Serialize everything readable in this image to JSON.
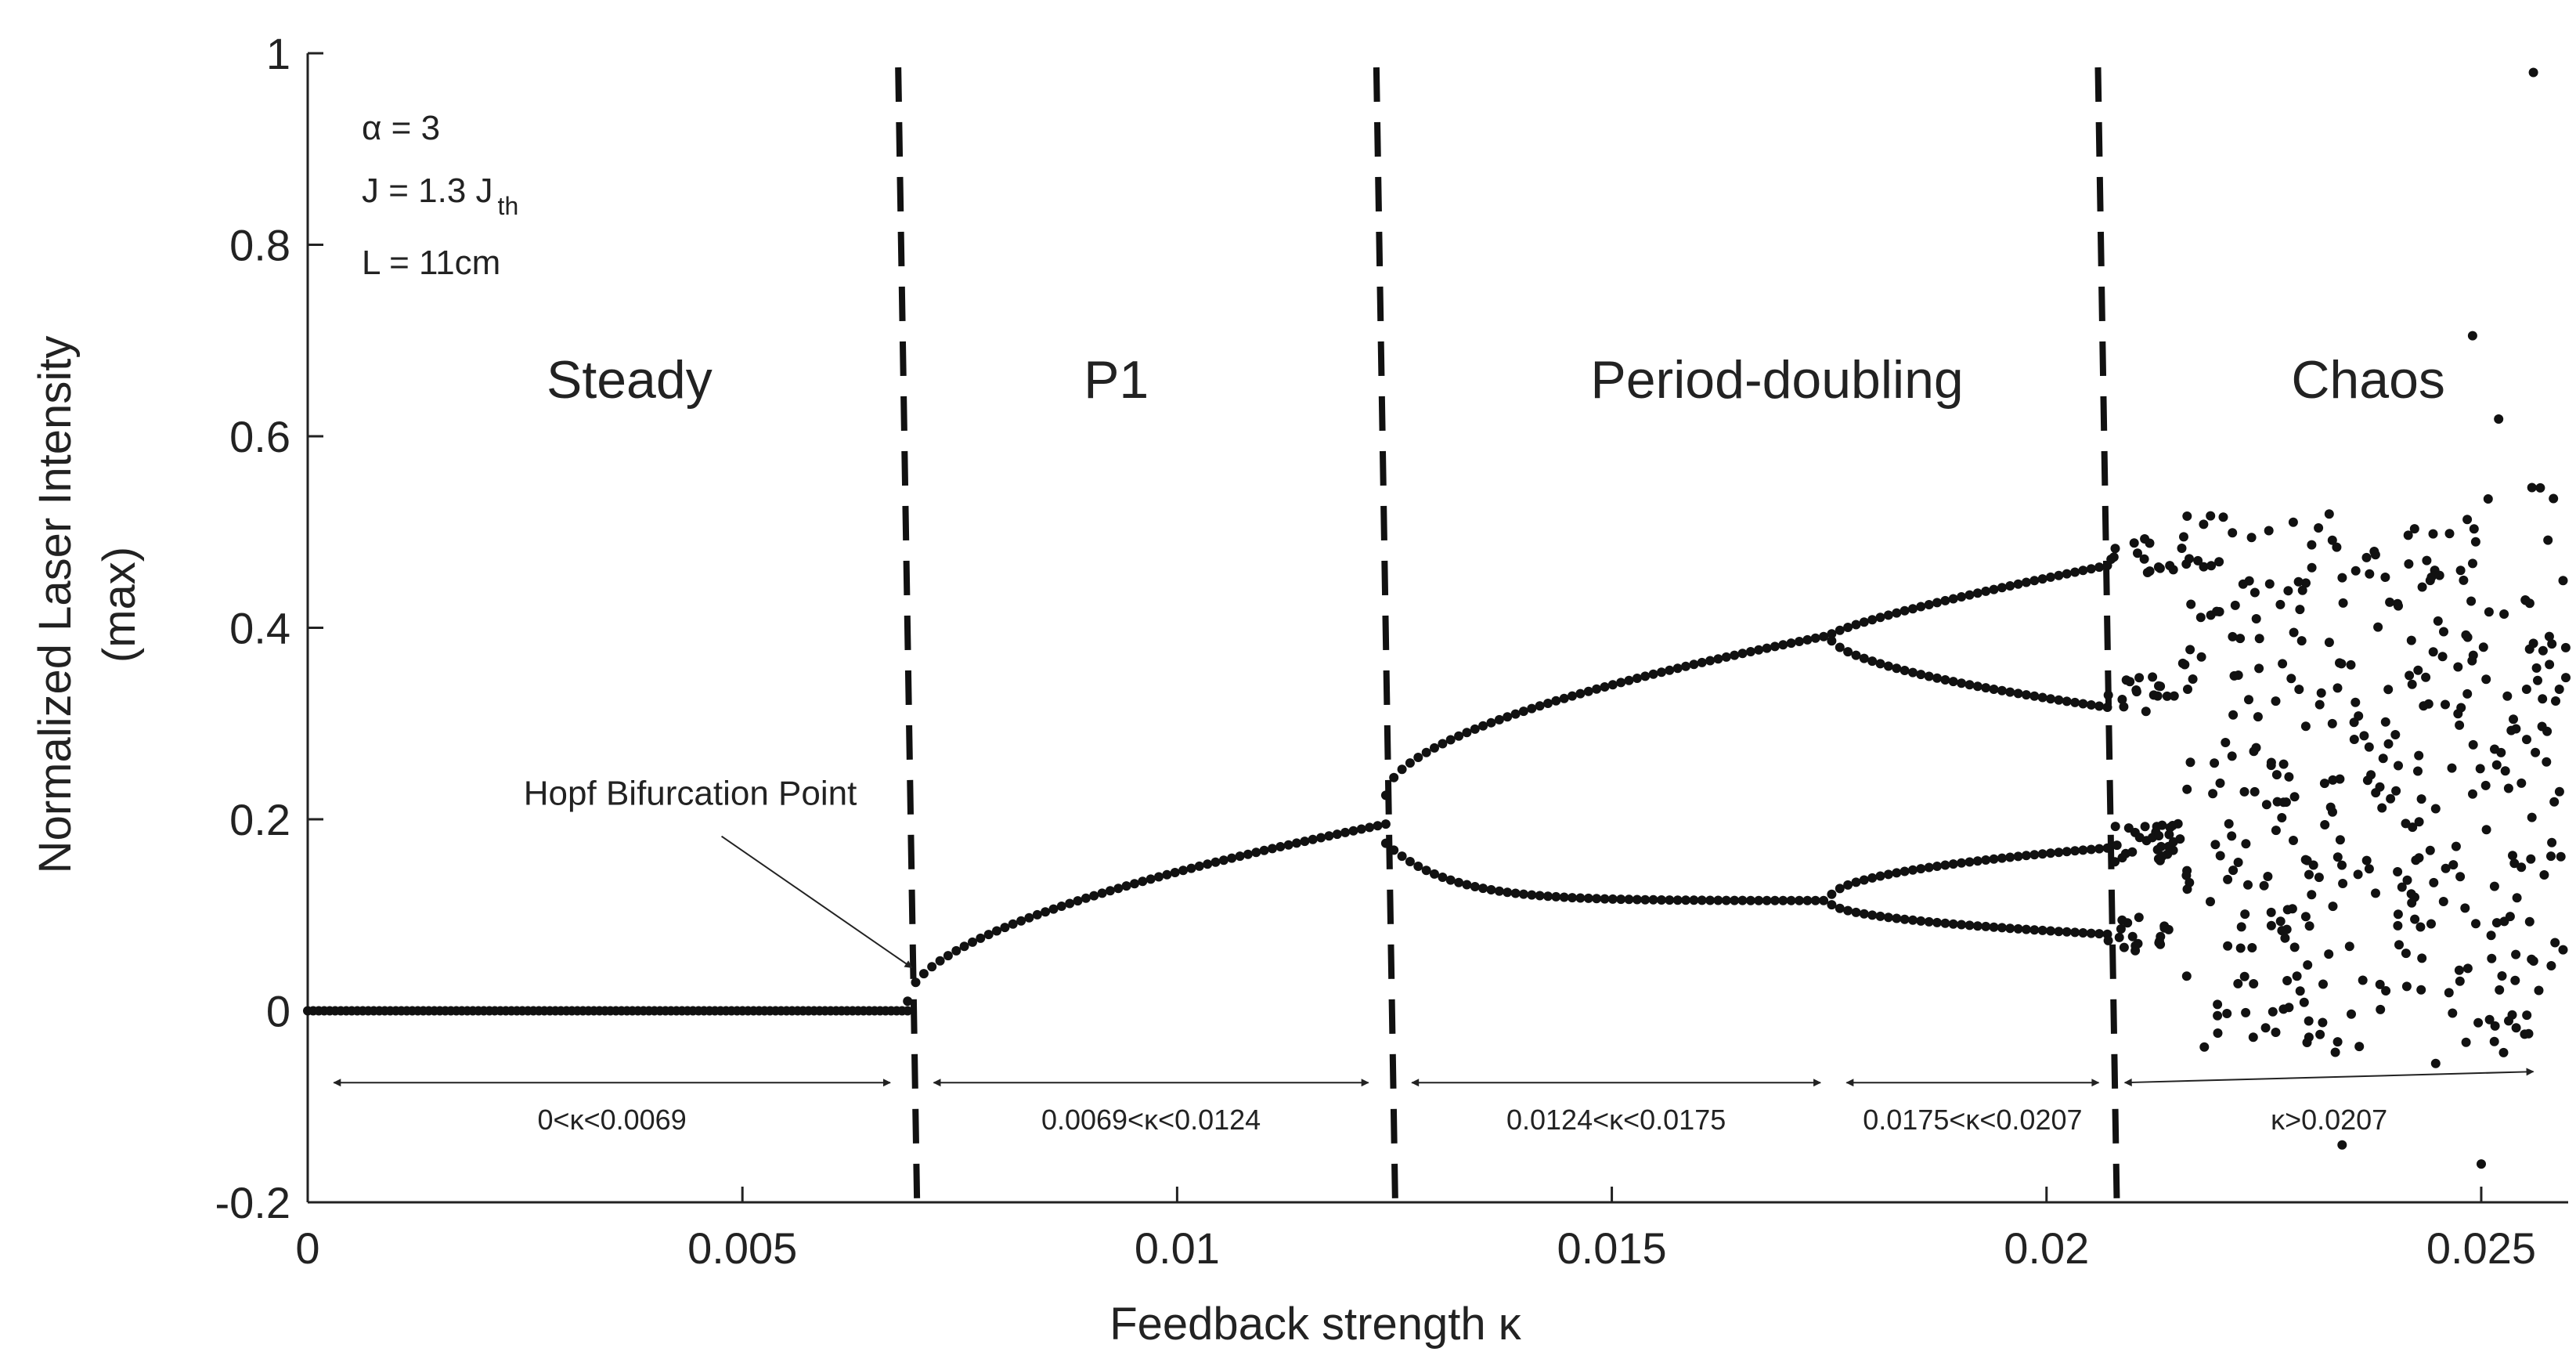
{
  "chart_data": {
    "type": "scatter",
    "title": "",
    "xlabel": "Feedback strength κ",
    "ylabel_line1": "Normalized Laser Intensity",
    "ylabel_line2": "(max)",
    "xlim": [
      0,
      0.026
    ],
    "ylim": [
      -0.2,
      1
    ],
    "x_ticks": [
      0,
      0.005,
      0.01,
      0.015,
      0.02,
      0.025
    ],
    "x_tick_labels": [
      "0",
      "0.005",
      "0.01",
      "0.015",
      "0.02",
      "0.025"
    ],
    "y_ticks": [
      -0.2,
      0,
      0.2,
      0.4,
      0.6,
      0.8,
      1
    ],
    "y_tick_labels": [
      "-0.2",
      "0",
      "0.2",
      "0.4",
      "0.6",
      "0.8",
      "1"
    ],
    "grid": false,
    "parameters": {
      "alpha": "α = 3",
      "J_main": "J = 1.3 J",
      "J_sub": "th",
      "L": "L = 11cm"
    },
    "regions": [
      {
        "name": "Steady",
        "label_x": 0.0037,
        "label_y": 0.64
      },
      {
        "name": "P1",
        "label_x": 0.0093,
        "label_y": 0.64
      },
      {
        "name": "Period-doubling",
        "label_x": 0.0169,
        "label_y": 0.64
      },
      {
        "name": "Chaos",
        "label_x": 0.0237,
        "label_y": 0.64
      }
    ],
    "boundaries": [
      0.0069,
      0.0124,
      0.0207
    ],
    "ranges": [
      {
        "label": "0<κ<0.0069",
        "from": 0.0003,
        "to": 0.0067
      },
      {
        "label": "0.0069<κ<0.0124",
        "from": 0.0072,
        "to": 0.0122
      },
      {
        "label": "0.0124<κ<0.0175",
        "from": 0.0127,
        "to": 0.0174
      },
      {
        "label": "0.0175<κ<0.0207",
        "from": 0.0177,
        "to": 0.0206
      },
      {
        "label": "κ>0.0207",
        "from": 0.0209,
        "to": 0.0256
      }
    ],
    "annotation": {
      "text": "Hopf Bifurcation Point",
      "text_x": 0.0044,
      "text_y": 0.215,
      "arrow_x": 0.00695,
      "arrow_y": 0.045
    },
    "series": [
      {
        "name": "Steady state",
        "x_range": [
          0,
          0.0069
        ],
        "points": 110,
        "y": 0
      },
      {
        "name": "P1 branch",
        "x_range": [
          0.0069,
          0.0124
        ],
        "points": 60,
        "y_at_start": 0.01,
        "y_at_end": 0.195
      },
      {
        "name": "Period-doubling upper branch",
        "x_range": [
          0.0124,
          0.0207
        ],
        "points": 90,
        "y_at_start": 0.225,
        "y_at_split": 0.392,
        "y_at_end": 0.465
      },
      {
        "name": "Period-doubling lower branch",
        "x_range": [
          0.0124,
          0.0207
        ],
        "points": 90,
        "y_at_start": 0.175,
        "y_at_split": 0.115,
        "y_at_end": 0.08
      },
      {
        "name": "Chaos",
        "x_range": [
          0.0207,
          0.026
        ],
        "y_range": [
          -0.16,
          0.98
        ],
        "points": 460
      }
    ]
  }
}
